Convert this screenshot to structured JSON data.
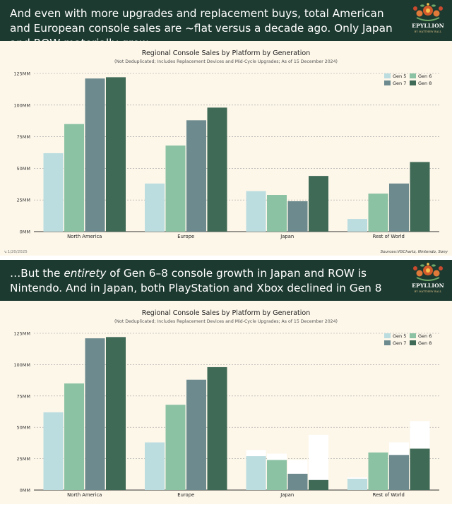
{
  "panels": [
    {
      "title_parts": [
        {
          "text": "And even with more upgrades and replacement buys, total American and European console sales are ~flat versus a decade ago. Only Japan and ROW materially grew",
          "italic": false
        }
      ],
      "footer": {
        "left": "v.1/20/2025",
        "right": "Sources:VGChartz, Nintendo, Sony"
      }
    },
    {
      "title_parts": [
        {
          "text": "…But the ",
          "italic": false
        },
        {
          "text": "entirety",
          "italic": true
        },
        {
          "text": " of Gen 6–8 console growth in Japan and ROW is Nintendo. And in Japan, both PlayStation and Xbox declined in Gen 8",
          "italic": false
        }
      ],
      "footer": {
        "left": "",
        "right": ""
      }
    }
  ],
  "logo": {
    "word": "EPYLLION",
    "sub": "BY MATTHEW BALL"
  },
  "colors": {
    "header_bg": "#1d3a30",
    "chart_bg": "#fdf7ea",
    "gen5": "#bcdde0",
    "gen6": "#8bc2a3",
    "gen7": "#6d8b8f",
    "gen8": "#3f6a56",
    "ghost": "#ffffff",
    "grid": "#9a9a9a"
  },
  "chart_data": [
    {
      "type": "bar",
      "title": "Regional Console Sales by Platform by Generation",
      "subtitle": "(Not Deduplicated; Includes Replacement Devices and Mid-Cycle Upgrades; As of 15 December 2024)",
      "categories": [
        "North America",
        "Europe",
        "Japan",
        "Rest of World"
      ],
      "series": [
        {
          "name": "Gen 5",
          "values": [
            62,
            38,
            32,
            10
          ]
        },
        {
          "name": "Gen 6",
          "values": [
            85,
            68,
            29,
            30
          ]
        },
        {
          "name": "Gen 7",
          "values": [
            121,
            88,
            24,
            38
          ]
        },
        {
          "name": "Gen 8",
          "values": [
            122,
            98,
            44,
            55
          ]
        }
      ],
      "ylim": [
        0,
        125
      ],
      "yticks": [
        "0MM",
        "25MM",
        "50MM",
        "75MM",
        "100MM",
        "125MM"
      ],
      "grid": true,
      "legend": "top-right"
    },
    {
      "type": "bar",
      "title": "Regional Console Sales by Platform by Generation",
      "subtitle": "(Not Deduplicated; Includes Replacement Devices and Mid-Cycle Upgrades; As of 15 December 2024)",
      "categories": [
        "North America",
        "Europe",
        "Japan",
        "Rest of World"
      ],
      "series": [
        {
          "name": "Gen 5",
          "values": [
            62,
            38,
            27,
            9
          ]
        },
        {
          "name": "Gen 6",
          "values": [
            85,
            68,
            24,
            30
          ]
        },
        {
          "name": "Gen 7",
          "values": [
            121,
            88,
            13,
            28
          ]
        },
        {
          "name": "Gen 8",
          "values": [
            122,
            98,
            8,
            33
          ]
        }
      ],
      "totals_outline": [
        [
          62,
          85,
          121,
          122
        ],
        [
          38,
          68,
          88,
          98
        ],
        [
          32,
          29,
          24,
          44
        ],
        [
          10,
          30,
          38,
          55
        ]
      ],
      "ylim": [
        0,
        125
      ],
      "yticks": [
        "0MM",
        "25MM",
        "50MM",
        "75MM",
        "100MM",
        "125MM"
      ],
      "grid": true,
      "legend": "top-right"
    }
  ]
}
